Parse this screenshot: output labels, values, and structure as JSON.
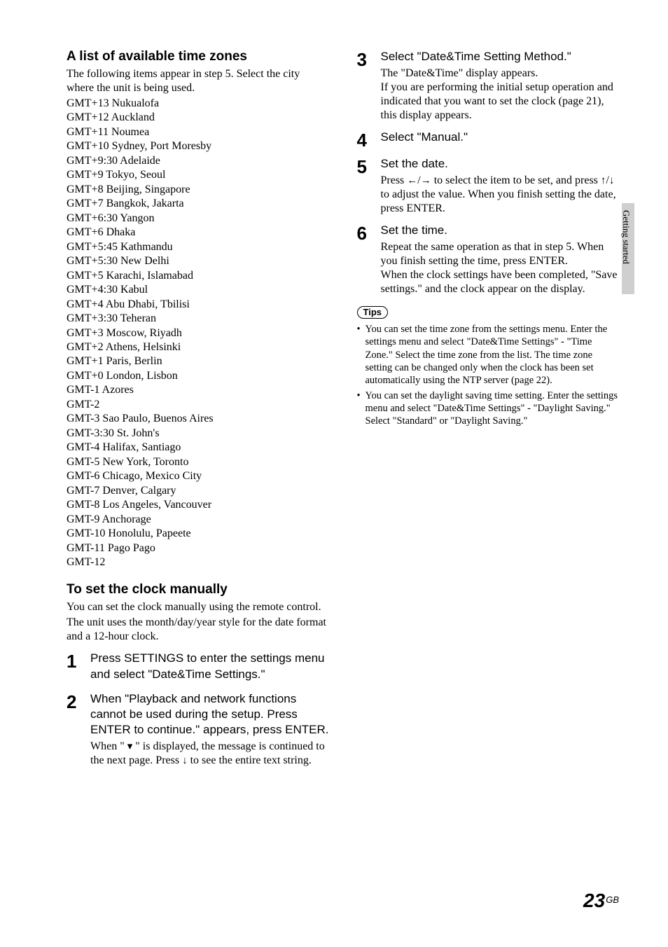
{
  "sideTab": "Getting started",
  "pageNumber": "23",
  "pageSuffix": "GB",
  "left": {
    "heading1": "A list of available time zones",
    "intro": "The following items appear in step 5. Select the city where the unit is being used.",
    "timezones": [
      "GMT+13 Nukualofa",
      "GMT+12 Auckland",
      "GMT+11 Noumea",
      "GMT+10 Sydney, Port Moresby",
      "GMT+9:30 Adelaide",
      "GMT+9 Tokyo, Seoul",
      "GMT+8 Beijing, Singapore",
      "GMT+7 Bangkok, Jakarta",
      "GMT+6:30 Yangon",
      "GMT+6 Dhaka",
      "GMT+5:45 Kathmandu",
      "GMT+5:30 New Delhi",
      "GMT+5 Karachi, Islamabad",
      "GMT+4:30 Kabul",
      "GMT+4 Abu Dhabi, Tbilisi",
      "GMT+3:30 Teheran",
      "GMT+3 Moscow, Riyadh",
      "GMT+2 Athens, Helsinki",
      "GMT+1 Paris, Berlin",
      "GMT+0 London, Lisbon",
      "GMT-1 Azores",
      "GMT-2",
      "GMT-3 Sao Paulo, Buenos Aires",
      "GMT-3:30 St. John's",
      "GMT-4 Halifax, Santiago",
      "GMT-5 New York, Toronto",
      "GMT-6 Chicago, Mexico City",
      "GMT-7 Denver, Calgary",
      "GMT-8 Los Angeles, Vancouver",
      "GMT-9 Anchorage",
      "GMT-10 Honolulu, Papeete",
      "GMT-11 Pago Pago",
      "GMT-12"
    ],
    "heading2": "To set the clock manually",
    "manualIntro1": "You can set the clock manually using the remote control.",
    "manualIntro2": "The unit uses the month/day/year style for the date format and a 12-hour clock.",
    "step1": {
      "num": "1",
      "title": "Press SETTINGS to enter the settings menu and select \"Date&Time Settings.\""
    },
    "step2": {
      "num": "2",
      "title": "When \"Playback and network functions cannot be used during the setup. Press ENTER to continue.\" appears, press ENTER.",
      "desc_a": "When \" ",
      "desc_b": " \" is displayed, the message is continued to the next page. Press ",
      "desc_c": " to see the entire text string."
    }
  },
  "right": {
    "step3": {
      "num": "3",
      "title": "Select \"Date&Time Setting Method.\"",
      "desc": "The \"Date&Time\" display appears.\nIf you are performing the initial setup operation and indicated that you want to set the clock (page 21), this display appears."
    },
    "step4": {
      "num": "4",
      "title": "Select \"Manual.\""
    },
    "step5": {
      "num": "5",
      "title": "Set the date.",
      "desc_a": "Press ",
      "desc_b": " to select the item to be set, and press ",
      "desc_c": " to adjust the value. When you finish setting the date, press ENTER."
    },
    "step6": {
      "num": "6",
      "title": "Set the time.",
      "desc": "Repeat the same operation as that in step 5. When you finish setting the time, press ENTER.\nWhen the clock settings have been completed, \"Save settings.\" and the clock appear on the display."
    },
    "tipsLabel": "Tips",
    "tips": [
      "You can set the time zone from the settings menu. Enter the settings menu and select \"Date&Time Settings\" - \"Time Zone.\" Select the time zone from the list. The time zone setting can be changed only when the clock has been set automatically using the NTP server (page 22).",
      "You can set the daylight saving time setting. Enter the settings menu and select \"Date&Time Settings\" - \"Daylight Saving.\" Select \"Standard\" or \"Daylight Saving.\""
    ]
  },
  "glyphs": {
    "left": "←",
    "right": "→",
    "up": "↑",
    "down": "↓",
    "slash": "/",
    "dropdown": "▾"
  }
}
